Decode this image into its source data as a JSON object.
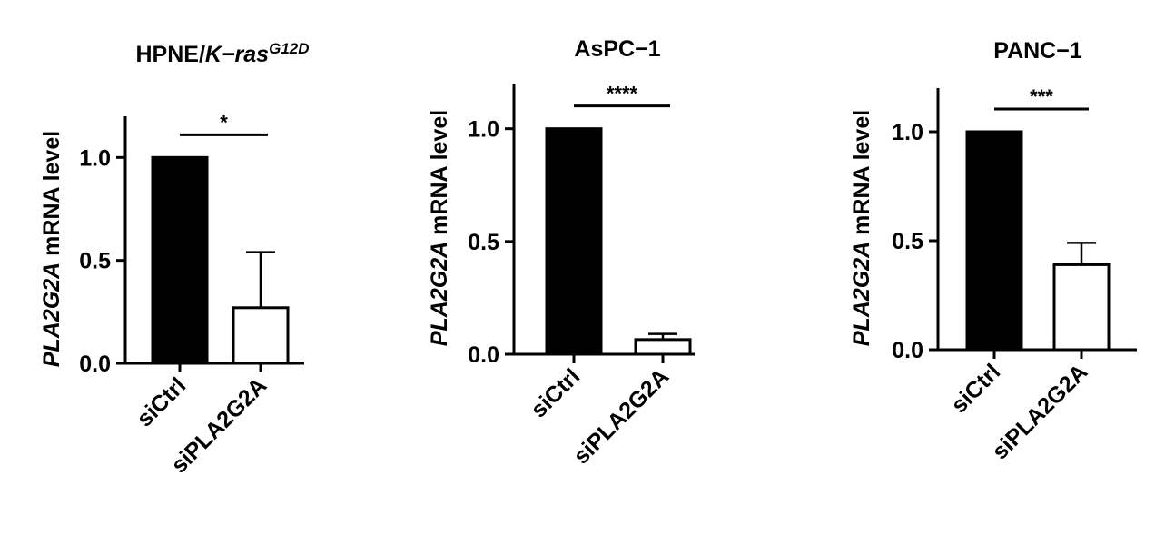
{
  "chart_data": [
    {
      "type": "bar",
      "title": [
        {
          "text": "HPNE/",
          "style": "normal"
        },
        {
          "text": "K−ras",
          "style": "italic"
        },
        {
          "text": "G12D",
          "style": "superscript"
        }
      ],
      "ylabel_italic": "PLA2G2A",
      "ylabel": "mRNA level",
      "categories": [
        "siCtrl",
        "siPLA2G2A"
      ],
      "values": [
        1.0,
        0.27
      ],
      "errors": [
        null,
        0.27
      ],
      "colors": [
        "#000000",
        "#ffffff"
      ],
      "ylim": [
        0,
        1.2
      ],
      "yticks": [
        {
          "value": 0,
          "label": "0.0"
        },
        0.5,
        {
          "value": 1,
          "label": "1.0"
        }
      ],
      "annotation": "*"
    },
    {
      "type": "bar",
      "title": [
        {
          "text": "AsPC−1",
          "style": "normal"
        }
      ],
      "ylabel_italic": "PLA2G2A",
      "ylabel": "mRNA level",
      "categories": [
        "siCtrl",
        "siPLA2G2A"
      ],
      "values": [
        1.0,
        0.065
      ],
      "errors": [
        null,
        0.025
      ],
      "colors": [
        "#000000",
        "#ffffff"
      ],
      "ylim": [
        0,
        1.2
      ],
      "yticks": [
        {
          "value": 0,
          "label": "0.0"
        },
        0.5,
        {
          "value": 1,
          "label": "1.0"
        }
      ],
      "annotation": "****"
    },
    {
      "type": "bar",
      "title": [
        {
          "text": "PANC−1",
          "style": "normal"
        }
      ],
      "ylabel_italic": "PLA2G2A",
      "ylabel": "mRNA level",
      "categories": [
        "siCtrl",
        "siPLA2G2A"
      ],
      "values": [
        1.0,
        0.39
      ],
      "errors": [
        null,
        0.1
      ],
      "colors": [
        "#000000",
        "#ffffff"
      ],
      "ylim": [
        0,
        1.2
      ],
      "yticks": [
        {
          "value": 0,
          "label": "0.0"
        },
        0.5,
        {
          "value": 1,
          "label": "1.0"
        }
      ],
      "annotation": "***"
    }
  ]
}
